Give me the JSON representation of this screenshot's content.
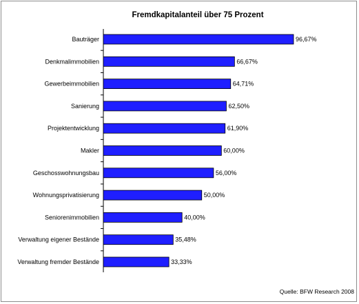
{
  "chart_data": {
    "type": "bar",
    "orientation": "horizontal",
    "title": "Fremdkapitalanteil über 75 Prozent",
    "categories": [
      "Bauträger",
      "Denkmalimmobilien",
      "Gewerbeimmobilien",
      "Sanierung",
      "Projektentwicklung",
      "Makler",
      "Geschosswohnungsbau",
      "Wohnungsprivatisierung",
      "Seniorenimmobilien",
      "Verwaltung eigener Bestände",
      "Verwaltung fremder Bestände"
    ],
    "values": [
      96.67,
      66.67,
      64.71,
      62.5,
      61.9,
      60.0,
      56.0,
      50.0,
      40.0,
      35.48,
      33.33
    ],
    "value_labels": [
      "96,67%",
      "66,67%",
      "64,71%",
      "62,50%",
      "61,90%",
      "60,00%",
      "56,00%",
      "50,00%",
      "40,00%",
      "35,48%",
      "33,33%"
    ],
    "xlim": [
      0,
      100
    ],
    "grid": false,
    "bar_color": "#1f1fff",
    "source": "Quelle: BFW Research 2008"
  }
}
